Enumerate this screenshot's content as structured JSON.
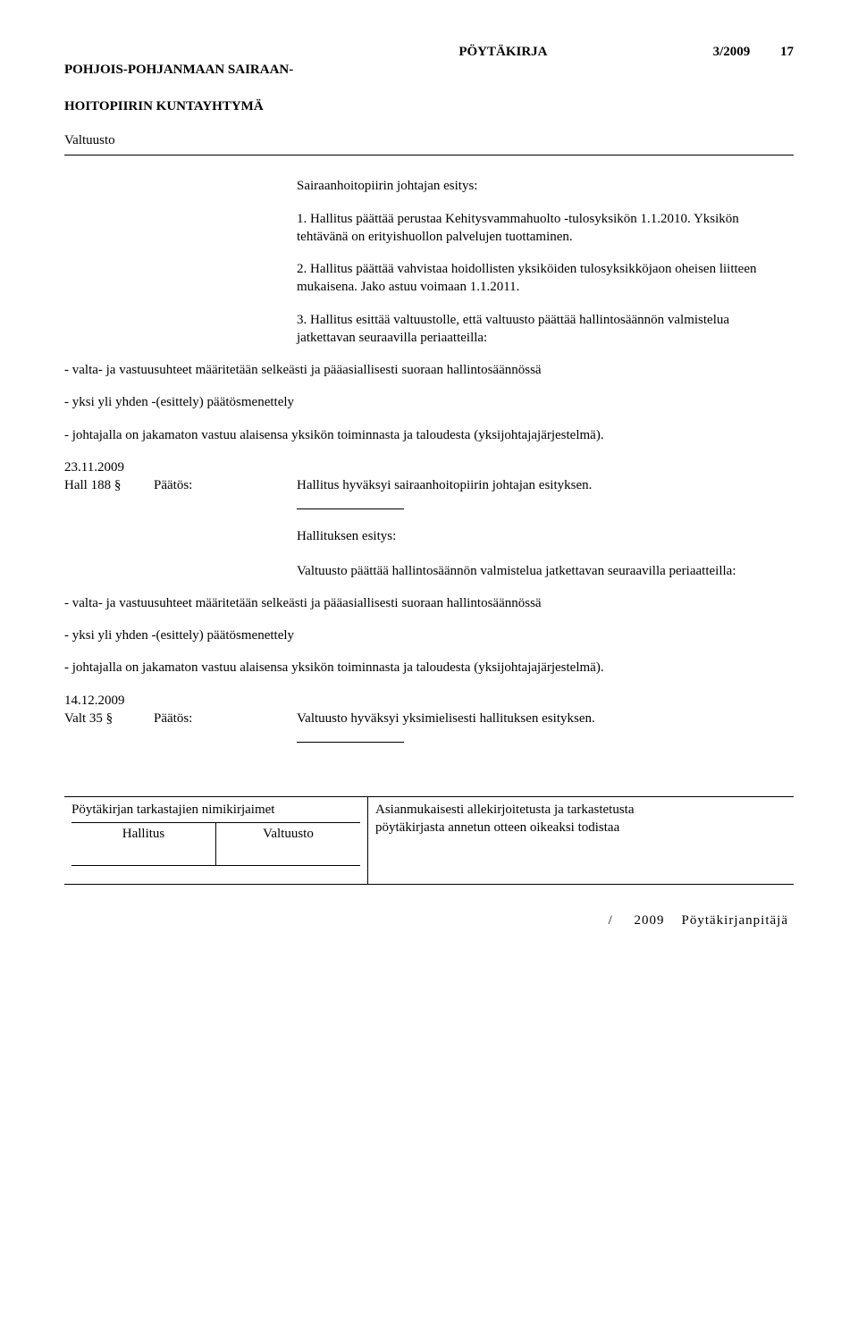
{
  "header": {
    "org_line1": "POHJOIS-POHJANMAAN SAIRAAN-",
    "org_line2": "HOITOPIIRIN KUNTAYHTYMÄ",
    "doc_type": "PÖYTÄKIRJA",
    "doc_num": "3/2009",
    "page_num": "17"
  },
  "section_title": "Valtuusto",
  "proposal_label": "Sairaanhoitopiirin johtajan esitys:",
  "items": {
    "p1": "1. Hallitus päättää perustaa Kehitysvammahuolto -tulosyksikön 1.1.2010. Yksikön tehtävänä on erityishuollon palvelujen tuottaminen.",
    "p2": "2. Hallitus päättää vahvistaa hoidollisten yksiköiden tulosyksikköjaon oheisen liitteen mukaisena. Jako astuu voimaan 1.1.2011.",
    "p3": "3. Hallitus esittää valtuustolle, että valtuusto päättää hallintosäännön valmistelua jatkettavan seuraavilla periaatteilla:",
    "b1": "- valta- ja vastuusuhteet määritetään selkeästi ja pääasiallisesti suoraan hallintosäännössä",
    "b2": "- yksi yli yhden -(esittely) päätösmenettely",
    "b3": "- johtajalla on jakamaton vastuu alaisensa yksikön toiminnasta ja taloudesta (yksijohtajajärjestelmä)."
  },
  "entry1": {
    "date": "23.11.2009",
    "ref": "Hall 188 §",
    "label": "Päätös:",
    "text": "Hallitus hyväksyi sairaanhoitopiirin johtajan esityksen."
  },
  "hallituksen_esitys_label": "Hallituksen esitys:",
  "esitys2": {
    "p1": "Valtuusto päättää hallintosäännön valmistelua jatkettavan seuraavilla periaatteilla:",
    "b1": "- valta- ja vastuusuhteet määritetään selkeästi ja pääasiallisesti suoraan hallintosäännössä",
    "b2": "- yksi yli yhden -(esittely) päätösmenettely",
    "b3": "- johtajalla on jakamaton vastuu alaisensa yksikön toiminnasta ja taloudesta (yksijohtajajärjestelmä)."
  },
  "entry2": {
    "date": "14.12.2009",
    "ref": "Valt 35 §",
    "label": "Päätös:",
    "text": "Valtuusto hyväksyi yksimielisesti hallituksen esityksen."
  },
  "footer": {
    "left_label": "Pöytäkirjan tarkastajien nimikirjaimet",
    "sub1": "Hallitus",
    "sub2": "Valtuusto",
    "right_line1": "Asianmukaisesti allekirjoitetusta ja tarkastetusta",
    "right_line2": "pöytäkirjasta annetun otteen oikeaksi todistaa"
  },
  "bottom": {
    "slash": "/",
    "year": "2009",
    "role": "Pöytäkirjanpitäjä"
  }
}
